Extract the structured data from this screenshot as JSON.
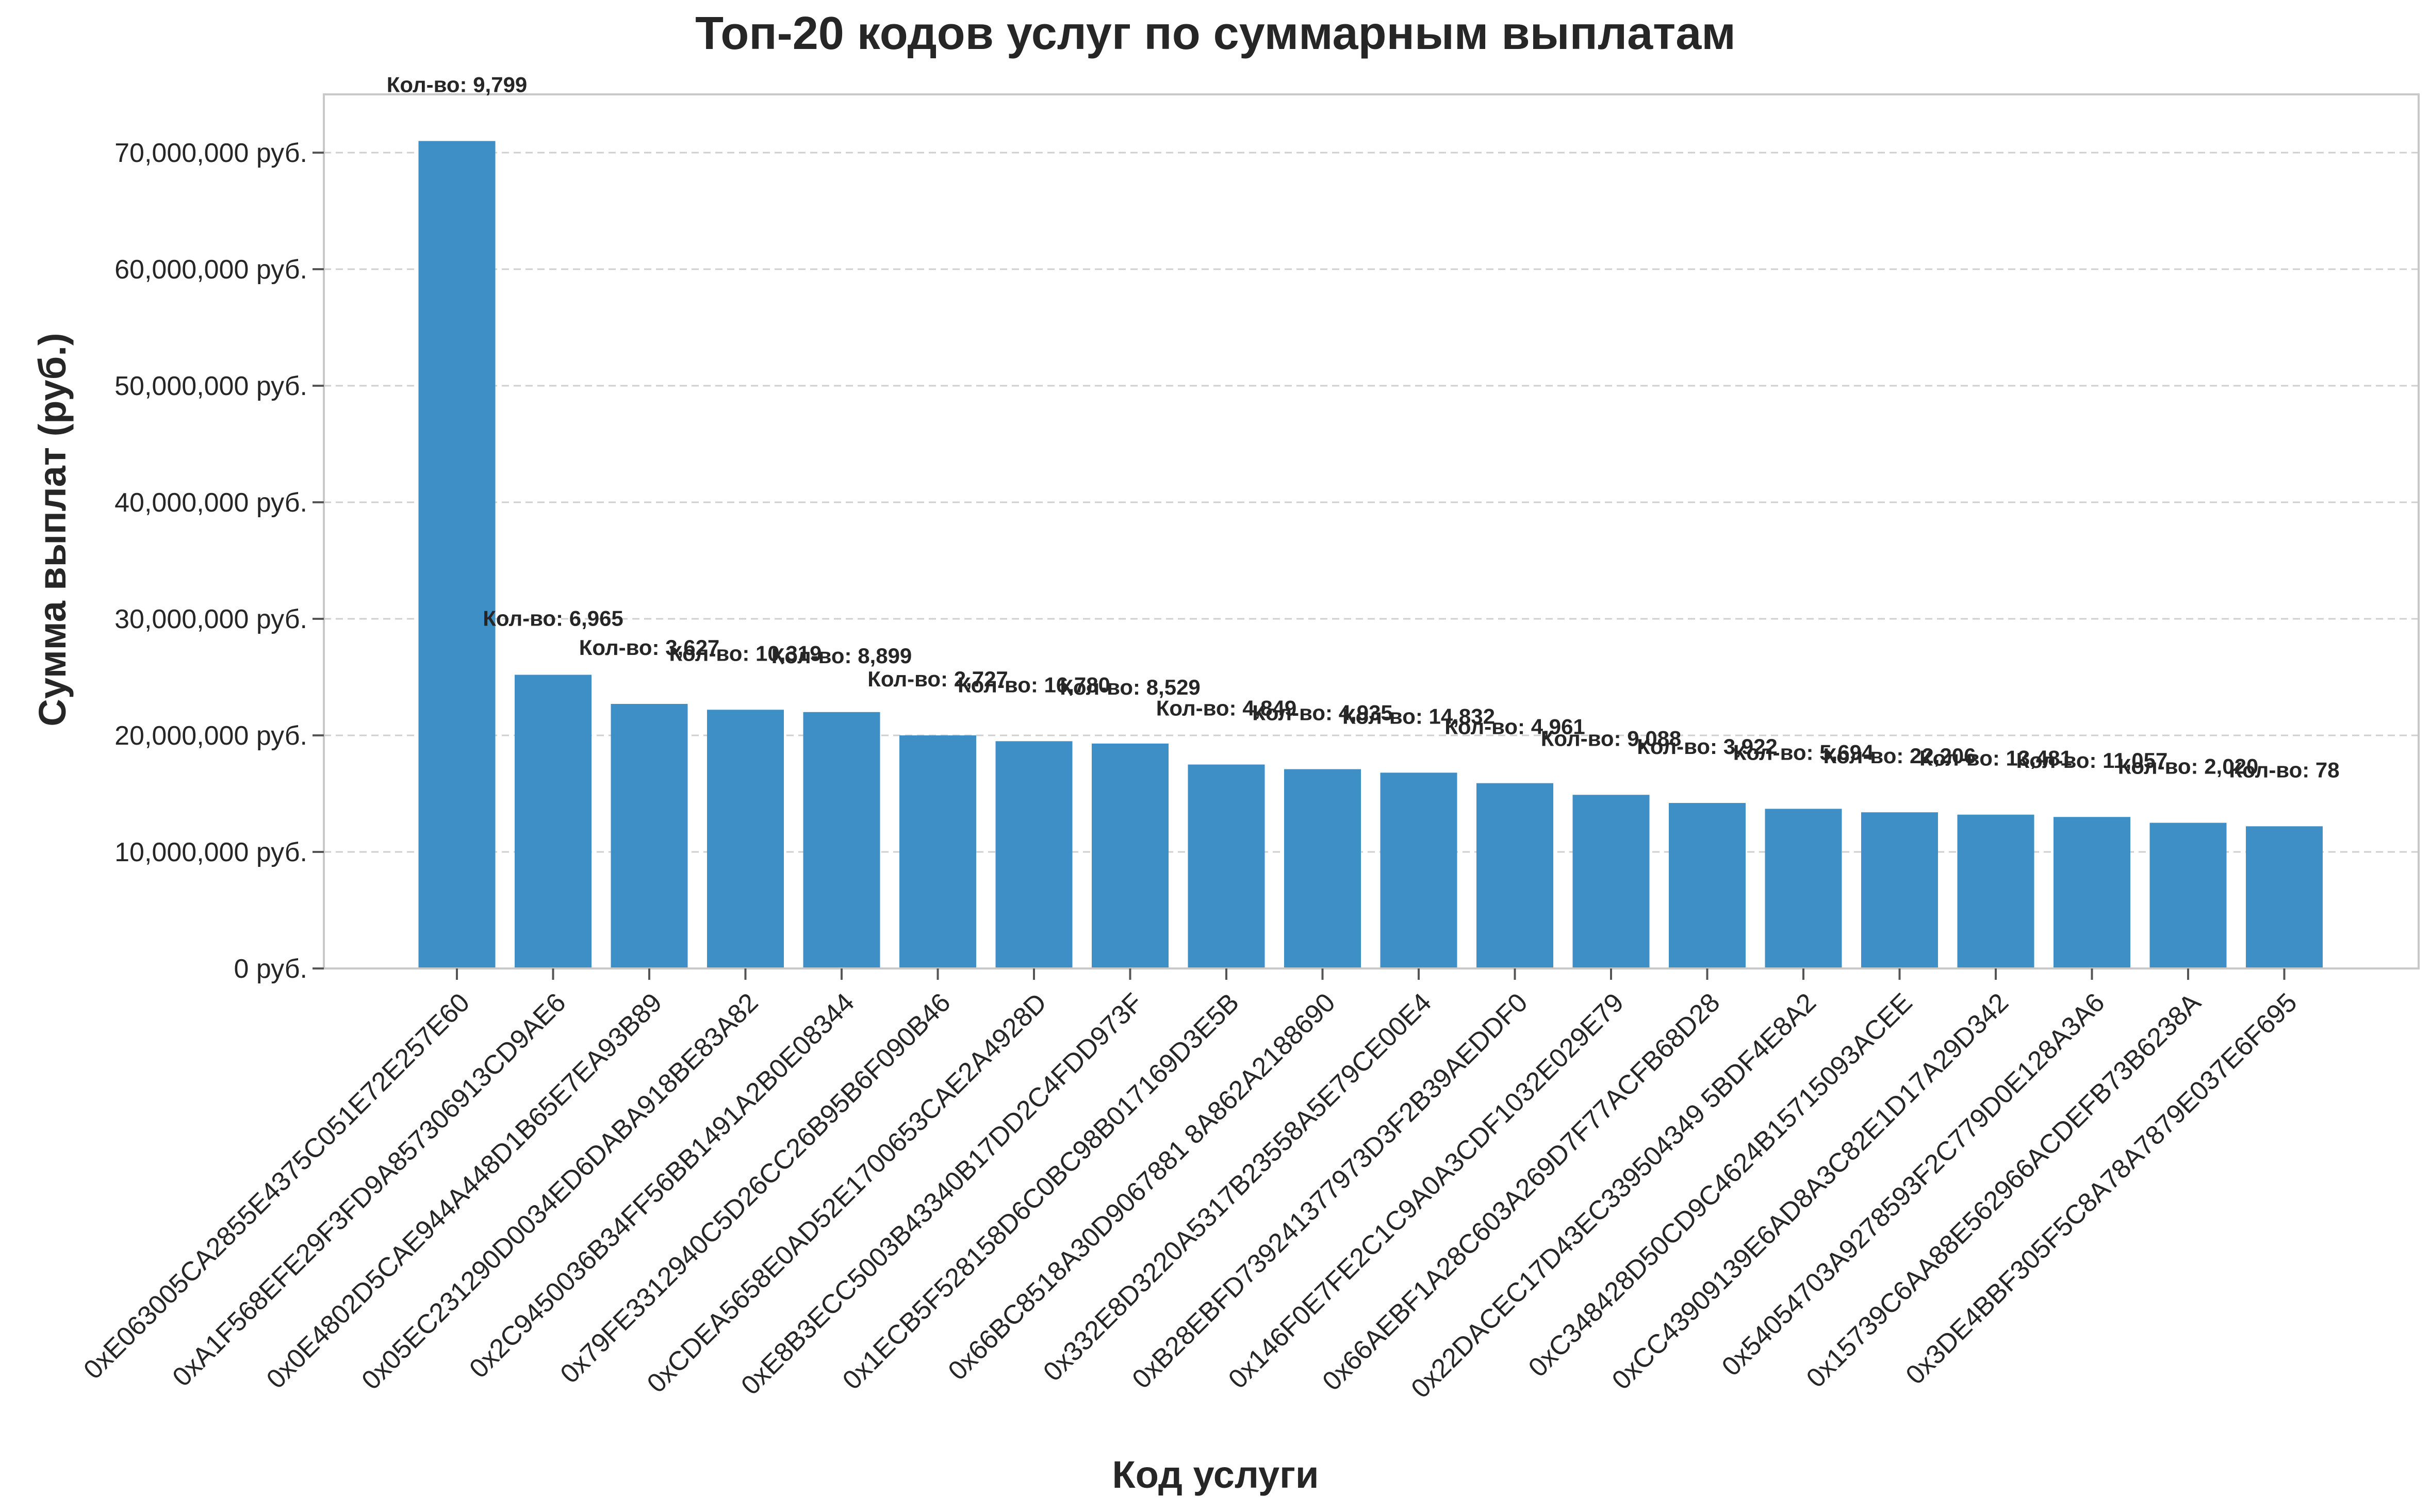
{
  "colors": {
    "bar": "#3f8fc7",
    "grid": "#cfcfcf",
    "text": "#262626"
  },
  "chart_data": {
    "type": "bar",
    "title": "Топ-20 кодов услуг по суммарным выплатам",
    "xlabel": "Код услуги",
    "ylabel": "Сумма выплат (руб.)",
    "ylim": [
      0,
      75000000
    ],
    "yticks": [
      0,
      10000000,
      20000000,
      30000000,
      40000000,
      50000000,
      60000000,
      70000000
    ],
    "ytick_labels": [
      "0 руб.",
      "10,000,000 руб.",
      "20,000,000 руб.",
      "30,000,000 руб.",
      "40,000,000 руб.",
      "50,000,000 руб.",
      "60,000,000 руб.",
      "70,000,000 руб."
    ],
    "grid": true,
    "categories": [
      "0xE063005CA2855E4375C051E72E257E60",
      "0xA1F568EFE29F3FD9A857306913CD9AE6",
      "0x0E4802D5CAE944A448D1B65E7EA93B89",
      "0x05EC231290D0034ED6DABA918BE83A82",
      "0x2C9450036B34FF56BB1491A2B0E08344",
      "0x79FE3312940C5D26CC26B95B6F090B46",
      "0xCDEA5658E0AD52E1700653CAE2A4928D",
      "0xE8B3ECC5003B43340B17DD2C4FDD973F",
      "0x1ECB5F528158D6C0BC98B017169D3E5B",
      "0x66BC8518A30D9067881 8A862A2188690",
      "0x332E8D3220A5317B23558A5E79CE00E4",
      "0xB28EBFD739241377973D3F2B39AEDDF0",
      "0x146F0E7FE2C1C9A0A3CDF1032E029E79",
      "0x66AEBF1A28C603A269D7F77ACFB68D28",
      "0x22DACEC17D43EC339504349 5BDF4E8A2",
      "0xC348428D50CD9C4624B15715093ACEE",
      "0xCC43909139E6AD8A3C82E1D17A29D342",
      "0x54054703A9278593F2C779D0E128A3A6",
      "0x15739C6AA88E562966ACDEFB73B6238A",
      "0x3DE4BBF305F5C8A78A7879E037E6F695"
    ],
    "values": [
      71000000,
      25200000,
      22700000,
      22200000,
      22000000,
      20000000,
      19500000,
      19300000,
      17500000,
      17100000,
      16800000,
      15900000,
      14900000,
      14200000,
      13700000,
      13400000,
      13200000,
      13000000,
      12500000,
      12200000
    ],
    "annotations": [
      "Кол-во: 9,799",
      "Кол-во: 6,965",
      "Кол-во: 3,627",
      "Кол-во: 10,319",
      "Кол-во: 8,899",
      "Кол-во: 2,727",
      "Кол-во: 16,780",
      "Кол-во: 8,529",
      "Кол-во: 4,849",
      "Кол-во: 4,935",
      "Кол-во: 14,832",
      "Кол-во: 4,961",
      "Кол-во: 9,088",
      "Кол-во: 3,922",
      "Кол-во: 5,694",
      "Кол-во: 22,206",
      "Кол-во: 13,481",
      "Кол-во: 11,057",
      "Кол-во: 2,020",
      "Кол-во: 78"
    ]
  }
}
